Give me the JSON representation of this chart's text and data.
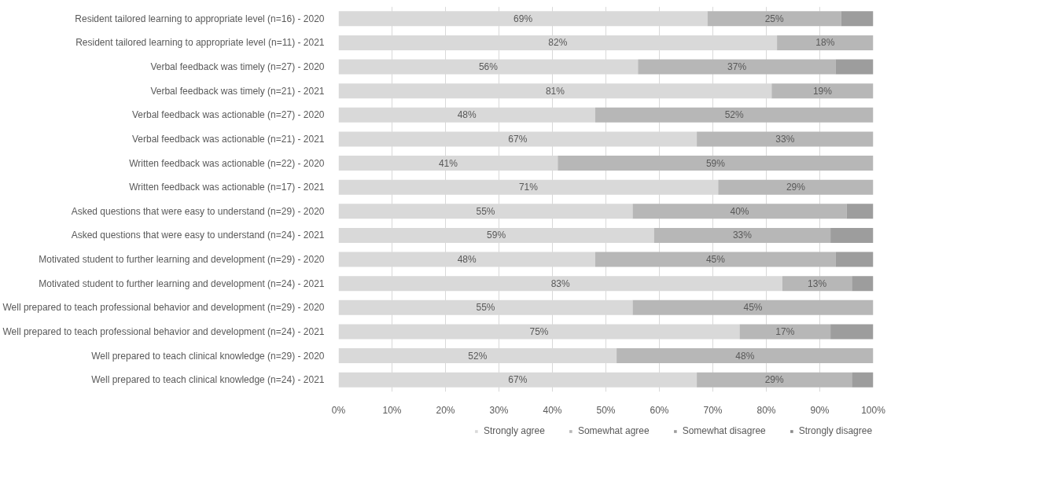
{
  "chart_data": {
    "type": "bar",
    "orientation": "horizontal",
    "stacked": true,
    "categories": [
      "Resident tailored learning to appropriate level (n=16) - 2020",
      "Resident tailored learning to appropriate level (n=11) - 2021",
      "Verbal feedback was timely (n=27) - 2020",
      "Verbal feedback was timely (n=21) - 2021",
      "Verbal feedback was actionable (n=27) - 2020",
      "Verbal feedback was actionable (n=21) - 2021",
      "Written feedback was actionable (n=22) - 2020",
      "Written feedback was actionable (n=17) - 2021",
      "Asked questions that were easy to understand (n=29) - 2020",
      "Asked questions that were easy to understand (n=24) - 2021",
      "Motivated student to further learning and development (n=29) - 2020",
      "Motivated student to further learning and development (n=24) - 2021",
      "Well prepared to teach professional behavior and development (n=29) - 2020",
      "Well prepared to teach professional behavior and development (n=24) - 2021",
      "Well prepared to teach clinical knowledge (n=29) - 2020",
      "Well prepared to teach clinical knowledge (n=24) - 2021"
    ],
    "series": [
      {
        "name": "Strongly agree",
        "color": "#d9d9d9",
        "values": [
          69,
          82,
          56,
          81,
          48,
          67,
          41,
          71,
          55,
          59,
          48,
          83,
          55,
          75,
          52,
          67
        ],
        "value_labels": [
          "69%",
          "82%",
          "56%",
          "81%",
          "48%",
          "67%",
          "41%",
          "71%",
          "55%",
          "59%",
          "48%",
          "83%",
          "55%",
          "75%",
          "52%",
          "67%"
        ]
      },
      {
        "name": "Somewhat agree",
        "color": "#b7b7b7",
        "values": [
          25,
          18,
          37,
          19,
          52,
          33,
          59,
          29,
          40,
          33,
          45,
          13,
          45,
          17,
          48,
          29
        ],
        "value_labels": [
          "25%",
          "18%",
          "37%",
          "19%",
          "52%",
          "33%",
          "59%",
          "29%",
          "40%",
          "33%",
          "45%",
          "13%",
          "45%",
          "17%",
          "48%",
          "29%"
        ]
      },
      {
        "name": "Somewhat disagree",
        "color": "#9d9d9d",
        "values": [
          6,
          null,
          7,
          null,
          null,
          null,
          null,
          null,
          5,
          8,
          7,
          4,
          null,
          8,
          null,
          4
        ]
      },
      {
        "name": "Strongly disagree",
        "color": "#8a8a8a",
        "values": [
          null,
          null,
          null,
          null,
          null,
          null,
          null,
          null,
          null,
          null,
          null,
          null,
          null,
          null,
          null,
          null
        ]
      }
    ],
    "xlim": [
      0,
      100
    ],
    "xticks": [
      {
        "value": 0,
        "label": "0%"
      },
      {
        "value": 10,
        "label": "10%"
      },
      {
        "value": 20,
        "label": "20%"
      },
      {
        "value": 30,
        "label": "30%"
      },
      {
        "value": 40,
        "label": "40%"
      },
      {
        "value": 50,
        "label": "50%"
      },
      {
        "value": 60,
        "label": "60%"
      },
      {
        "value": 70,
        "label": "70%"
      },
      {
        "value": 80,
        "label": "80%"
      },
      {
        "value": 90,
        "label": "90%"
      },
      {
        "value": 100,
        "label": "100%"
      }
    ],
    "grid": "x",
    "legend": "bottom"
  }
}
